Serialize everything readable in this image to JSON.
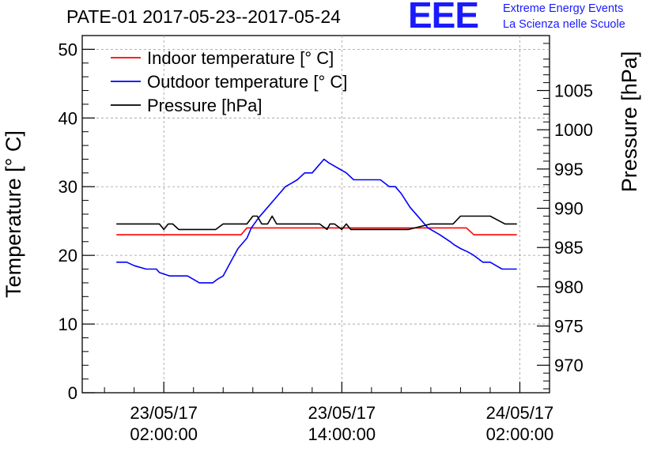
{
  "title": "PATE-01 2017-05-23--2017-05-24",
  "logo": {
    "mark": "EEE",
    "line1": "Extreme Energy Events",
    "line2": "La Scienza nelle Scuole",
    "color": "#1a1aff"
  },
  "chart_data": {
    "type": "line",
    "ylabel": "Temperature [° C]",
    "y2label": "Pressure [hPa]",
    "ylim": [
      0,
      52
    ],
    "y2lim": [
      966.5,
      1012
    ],
    "yticks": [
      0,
      10,
      20,
      30,
      40,
      50
    ],
    "y2ticks": [
      970,
      975,
      980,
      985,
      990,
      995,
      1000,
      1005
    ],
    "xticks": [
      {
        "line1": "23/05/17",
        "line2": "02:00:00",
        "hour": 0
      },
      {
        "line1": "23/05/17",
        "line2": "14:00:00",
        "hour": 12
      },
      {
        "line1": "24/05/17",
        "line2": "02:00:00",
        "hour": 24
      }
    ],
    "xlim_hours": [
      -5.5,
      26
    ],
    "grid": true,
    "legend_position": "top-left",
    "series": [
      {
        "name": "Indoor temperature [° C]",
        "color": "#ff0000",
        "axis": "left",
        "x": [
          -3.2,
          5.2,
          5.6,
          20.4,
          20.9,
          23.8
        ],
        "y": [
          23,
          23,
          24,
          24,
          23,
          23
        ]
      },
      {
        "name": "Outdoor temperature [° C]",
        "color": "#0000ff",
        "axis": "left",
        "x": [
          -3.2,
          -2.5,
          -2.0,
          -1.2,
          -0.5,
          -0.3,
          0.4,
          1.0,
          1.6,
          2.0,
          2.4,
          2.9,
          3.3,
          3.6,
          4.0,
          4.5,
          5.0,
          5.6,
          5.9,
          6.4,
          7.0,
          7.4,
          7.8,
          8.2,
          8.6,
          9.0,
          9.5,
          10.0,
          10.4,
          10.8,
          11.1,
          11.5,
          11.9,
          12.3,
          12.8,
          13.2,
          13.8,
          14.2,
          14.6,
          15.2,
          15.6,
          16.0,
          16.6,
          17.2,
          17.8,
          18.2,
          18.6,
          19.3,
          19.6,
          20.0,
          20.5,
          20.9,
          21.5,
          22.0,
          22.4,
          22.8,
          23.2,
          23.8
        ],
        "y": [
          19,
          19,
          18.5,
          18,
          18,
          17.5,
          17,
          17,
          17,
          16.5,
          16,
          16,
          16,
          16.5,
          17,
          19,
          21,
          22.5,
          24,
          25.5,
          27,
          28,
          29,
          30,
          30.5,
          31,
          32,
          32,
          33,
          34,
          33.5,
          33,
          32.5,
          32,
          31,
          31,
          31,
          31,
          31,
          30,
          30,
          29,
          27,
          25.5,
          24,
          23.5,
          23,
          22,
          21.5,
          21,
          20.5,
          20,
          19,
          19,
          18.5,
          18,
          18,
          18
        ]
      },
      {
        "name": "Pressure [hPa]",
        "color": "#000000",
        "axis": "right",
        "x": [
          -3.2,
          -1.0,
          -0.3,
          0.0,
          0.3,
          0.6,
          1.0,
          2.0,
          3.0,
          3.5,
          4.0,
          5.0,
          5.6,
          6.0,
          6.3,
          6.6,
          7.0,
          7.3,
          7.6,
          8.0,
          9.0,
          10.5,
          11.0,
          11.2,
          11.5,
          12.0,
          12.3,
          12.6,
          13.0,
          14.0,
          15.5,
          16.5,
          18.0,
          19.5,
          20.0,
          21.0,
          22.0,
          23.0,
          23.8
        ],
        "y": [
          988,
          988,
          988,
          987.3,
          988,
          988,
          987.3,
          987.3,
          987.3,
          987.3,
          988,
          988,
          988,
          989,
          989,
          988,
          988,
          989,
          988,
          988,
          988,
          988,
          987.3,
          988,
          988,
          987.3,
          988,
          987.3,
          987.3,
          987.3,
          987.3,
          987.3,
          988,
          988,
          989,
          989,
          989,
          988,
          988
        ]
      }
    ]
  }
}
